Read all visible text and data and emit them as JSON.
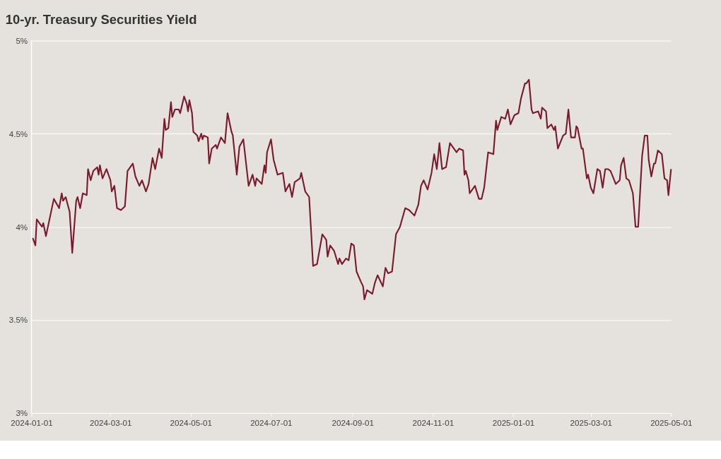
{
  "chart_data": {
    "type": "line",
    "title": "10-yr. Treasury Securities Yield",
    "x": [
      "2024-01-02",
      "2024-01-04",
      "2024-01-05",
      "2024-01-09",
      "2024-01-10",
      "2024-01-12",
      "2024-01-18",
      "2024-01-22",
      "2024-01-24",
      "2024-01-25",
      "2024-01-27",
      "2024-01-30",
      "2024-02-01",
      "2024-02-04",
      "2024-02-05",
      "2024-02-07",
      "2024-02-09",
      "2024-02-12",
      "2024-02-13",
      "2024-02-15",
      "2024-02-17",
      "2024-02-20",
      "2024-02-21",
      "2024-02-22",
      "2024-02-24",
      "2024-02-27",
      "2024-03-01",
      "2024-03-02",
      "2024-03-04",
      "2024-03-06",
      "2024-03-09",
      "2024-03-12",
      "2024-03-14",
      "2024-03-18",
      "2024-03-20",
      "2024-03-23",
      "2024-03-25",
      "2024-03-28",
      "2024-03-30",
      "2024-04-02",
      "2024-04-04",
      "2024-04-07",
      "2024-04-09",
      "2024-04-11",
      "2024-04-12",
      "2024-04-14",
      "2024-04-16",
      "2024-04-17",
      "2024-04-19",
      "2024-04-22",
      "2024-04-23",
      "2024-04-26",
      "2024-04-28",
      "2024-04-29",
      "2024-04-30",
      "2024-05-02",
      "2024-05-03",
      "2024-05-06",
      "2024-05-07",
      "2024-05-09",
      "2024-05-10",
      "2024-05-11",
      "2024-05-14",
      "2024-05-15",
      "2024-05-17",
      "2024-05-20",
      "2024-05-21",
      "2024-05-24",
      "2024-05-27",
      "2024-05-29",
      "2024-06-01",
      "2024-06-02",
      "2024-06-05",
      "2024-06-07",
      "2024-06-10",
      "2024-06-14",
      "2024-06-17",
      "2024-06-19",
      "2024-06-20",
      "2024-06-24",
      "2024-06-26",
      "2024-06-27",
      "2024-06-28",
      "2024-07-01",
      "2024-07-03",
      "2024-07-06",
      "2024-07-10",
      "2024-07-12",
      "2024-07-15",
      "2024-07-17",
      "2024-07-19",
      "2024-07-23",
      "2024-07-24",
      "2024-07-27",
      "2024-07-30",
      "2024-08-02",
      "2024-08-05",
      "2024-08-09",
      "2024-08-12",
      "2024-08-13",
      "2024-08-15",
      "2024-08-18",
      "2024-08-21",
      "2024-08-22",
      "2024-08-24",
      "2024-08-27",
      "2024-08-29",
      "2024-08-31",
      "2024-09-02",
      "2024-09-04",
      "2024-09-07",
      "2024-09-09",
      "2024-09-10",
      "2024-09-12",
      "2024-09-16",
      "2024-09-18",
      "2024-09-20",
      "2024-09-24",
      "2024-09-26",
      "2024-09-28",
      "2024-10-01",
      "2024-10-04",
      "2024-10-07",
      "2024-10-11",
      "2024-10-14",
      "2024-10-18",
      "2024-10-21",
      "2024-10-23",
      "2024-10-25",
      "2024-10-28",
      "2024-10-31",
      "2024-11-02",
      "2024-11-04",
      "2024-11-06",
      "2024-11-08",
      "2024-11-11",
      "2024-11-14",
      "2024-11-19",
      "2024-11-21",
      "2024-11-24",
      "2024-11-25",
      "2024-11-26",
      "2024-11-28",
      "2024-11-29",
      "2024-12-03",
      "2024-12-06",
      "2024-12-08",
      "2024-12-10",
      "2024-12-13",
      "2024-12-17",
      "2024-12-19",
      "2024-12-20",
      "2024-12-23",
      "2024-12-26",
      "2024-12-28",
      "2024-12-30",
      "2025-01-02",
      "2025-01-05",
      "2025-01-07",
      "2025-01-10",
      "2025-01-11",
      "2025-01-13",
      "2025-01-15",
      "2025-01-16",
      "2025-01-20",
      "2025-01-22",
      "2025-01-23",
      "2025-01-26",
      "2025-01-27",
      "2025-01-30",
      "2025-02-01",
      "2025-02-02",
      "2025-02-04",
      "2025-02-08",
      "2025-02-10",
      "2025-02-12",
      "2025-02-14",
      "2025-02-17",
      "2025-02-18",
      "2025-02-19",
      "2025-02-22",
      "2025-02-23",
      "2025-02-26",
      "2025-02-27",
      "2025-03-01",
      "2025-03-03",
      "2025-03-06",
      "2025-03-08",
      "2025-03-10",
      "2025-03-12",
      "2025-03-14",
      "2025-03-16",
      "2025-03-20",
      "2025-03-23",
      "2025-03-24",
      "2025-03-26",
      "2025-03-28",
      "2025-03-30",
      "2025-04-02",
      "2025-04-04",
      "2025-04-06",
      "2025-04-09",
      "2025-04-11",
      "2025-04-13",
      "2025-04-14",
      "2025-04-16",
      "2025-04-18",
      "2025-04-19",
      "2025-04-21",
      "2025-04-24",
      "2025-04-26",
      "2025-04-28",
      "2025-04-29",
      "2025-05-01"
    ],
    "series": [
      {
        "color": "#7b1a2b",
        "values": [
          3.94,
          3.9,
          4.04,
          4.0,
          4.02,
          3.95,
          4.15,
          4.1,
          4.18,
          4.14,
          4.16,
          4.08,
          3.86,
          4.14,
          4.16,
          4.1,
          4.18,
          4.17,
          4.31,
          4.25,
          4.3,
          4.32,
          4.28,
          4.33,
          4.26,
          4.31,
          4.25,
          4.19,
          4.22,
          4.1,
          4.09,
          4.11,
          4.3,
          4.34,
          4.27,
          4.22,
          4.25,
          4.19,
          4.23,
          4.37,
          4.31,
          4.42,
          4.37,
          4.58,
          4.52,
          4.53,
          4.67,
          4.59,
          4.63,
          4.63,
          4.61,
          4.7,
          4.66,
          4.62,
          4.68,
          4.61,
          4.51,
          4.49,
          4.46,
          4.5,
          4.47,
          4.49,
          4.48,
          4.34,
          4.42,
          4.44,
          4.42,
          4.48,
          4.45,
          4.61,
          4.51,
          4.49,
          4.28,
          4.43,
          4.47,
          4.22,
          4.28,
          4.22,
          4.26,
          4.23,
          4.33,
          4.29,
          4.4,
          4.47,
          4.36,
          4.28,
          4.29,
          4.19,
          4.23,
          4.16,
          4.24,
          4.26,
          4.29,
          4.19,
          4.16,
          3.79,
          3.8,
          3.96,
          3.93,
          3.84,
          3.9,
          3.87,
          3.8,
          3.83,
          3.8,
          3.83,
          3.82,
          3.91,
          3.9,
          3.76,
          3.71,
          3.68,
          3.61,
          3.66,
          3.64,
          3.7,
          3.74,
          3.68,
          3.78,
          3.75,
          3.76,
          3.96,
          4.0,
          4.1,
          4.09,
          4.06,
          4.12,
          4.22,
          4.25,
          4.2,
          4.29,
          4.39,
          4.31,
          4.45,
          4.31,
          4.32,
          4.45,
          4.4,
          4.42,
          4.41,
          4.28,
          4.3,
          4.25,
          4.18,
          4.22,
          4.15,
          4.15,
          4.21,
          4.4,
          4.39,
          4.57,
          4.52,
          4.59,
          4.58,
          4.63,
          4.55,
          4.6,
          4.61,
          4.69,
          4.77,
          4.77,
          4.79,
          4.63,
          4.61,
          4.62,
          4.58,
          4.64,
          4.62,
          4.53,
          4.55,
          4.52,
          4.54,
          4.42,
          4.49,
          4.5,
          4.63,
          4.48,
          4.48,
          4.54,
          4.53,
          4.42,
          4.42,
          4.26,
          4.28,
          4.21,
          4.18,
          4.31,
          4.3,
          4.21,
          4.31,
          4.31,
          4.3,
          4.23,
          4.25,
          4.33,
          4.37,
          4.26,
          4.25,
          4.18,
          4.0,
          4.0,
          4.38,
          4.49,
          4.49,
          4.36,
          4.27,
          4.34,
          4.34,
          4.41,
          4.39,
          4.26,
          4.25,
          4.17,
          4.31
        ]
      }
    ],
    "xlim": [
      "2024-01-01",
      "2025-05-01"
    ],
    "xticks": [
      "2024-01-01",
      "2024-03-01",
      "2024-05-01",
      "2024-07-01",
      "2024-09-01",
      "2024-11-01",
      "2025-01-01",
      "2025-03-01",
      "2025-05-01"
    ],
    "ylim": [
      3,
      5
    ],
    "yticks": [
      {
        "value": 3,
        "label": "3%"
      },
      {
        "value": 3.5,
        "label": "3.5%"
      },
      {
        "value": 4,
        "label": "4%"
      },
      {
        "value": 4.5,
        "label": "4.5%"
      },
      {
        "value": 5,
        "label": "5%"
      }
    ],
    "grid": "y",
    "legend": false,
    "marker": "none",
    "line_style": "solid"
  }
}
